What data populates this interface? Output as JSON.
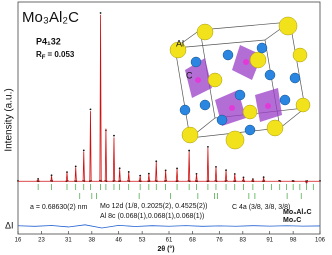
{
  "chart_data": {
    "type": "rietveld",
    "title": "Mo₃Al₂C",
    "space_group": "P4₁32",
    "rf_symbol": "R",
    "rf_sub": "F",
    "rf_value": "= 0.053",
    "ylabel": "Intensity (a.u.)",
    "diff_label": "ΔI",
    "xlabel": "2θ (°)",
    "annotations": [
      "a = 0.68630(2) nm",
      "Mo 12d (1/8, 0.2025(2), 0.4525(2))",
      "C 4a (3/8, 3/8, 3/8)",
      "Al 8c (0.068(1),0.068(1),0.068(1))"
    ],
    "inset_labels": [
      "Al",
      "C"
    ],
    "xlim": [
      16,
      106
    ],
    "xticks": [
      16,
      23,
      31,
      38,
      46,
      53,
      61,
      68,
      76,
      83,
      91,
      98,
      106
    ],
    "ylim": [
      0,
      105
    ],
    "x": [
      16,
      21.8,
      22,
      22.2,
      25.8,
      26,
      26.2,
      30.4,
      30.6,
      30.8,
      33,
      33.2,
      33.4,
      35.4,
      35.6,
      35.8,
      37.4,
      37.6,
      37.8,
      40.4,
      40.6,
      40.8,
      42,
      42.2,
      42.4,
      44.4,
      44.6,
      44.8,
      46.1,
      46.3,
      46.5,
      48.8,
      49,
      49.2,
      52.2,
      52.4,
      52.6,
      54.8,
      55,
      55.2,
      57,
      57.2,
      57.4,
      59.8,
      60,
      60.2,
      63.2,
      63.4,
      63.6,
      66.8,
      67,
      67.2,
      69,
      69.2,
      69.4,
      72.4,
      72.6,
      72.8,
      74.8,
      75,
      75.2,
      77.8,
      78,
      78.2,
      80.4,
      80.6,
      80.8,
      83,
      83.2,
      83.4,
      85.8,
      86,
      86.2,
      89,
      89.2,
      89.4,
      93.8,
      94,
      94.2,
      97.8,
      98,
      98.2,
      101.8,
      102,
      102.2,
      106
    ],
    "calculated": {
      "color": "#d01010",
      "values": [
        5,
        5,
        6,
        5,
        5,
        8,
        5,
        5,
        10,
        5,
        5,
        13,
        5,
        5,
        22,
        5,
        5,
        45,
        5,
        5,
        100,
        5,
        5,
        35,
        5,
        5,
        30,
        5,
        5,
        12,
        5,
        5,
        10,
        5,
        5,
        8,
        5,
        5,
        9,
        5,
        5,
        16,
        5,
        5,
        11,
        5,
        5,
        12,
        5,
        5,
        22,
        5,
        5,
        9,
        5,
        5,
        24,
        5,
        5,
        13,
        5,
        5,
        11,
        5,
        5,
        9,
        5,
        5,
        7,
        5,
        5,
        6,
        5,
        5,
        7,
        5,
        5,
        5,
        5,
        5,
        5,
        5,
        5,
        4,
        5,
        5
      ]
    },
    "observed": {
      "color": "#111111",
      "values": [
        5.2,
        5.1,
        6.3,
        5,
        5.2,
        8.4,
        5.1,
        5,
        10.2,
        5.2,
        5.1,
        13.5,
        5,
        5.2,
        22.6,
        5.1,
        5,
        46,
        5.2,
        5.3,
        101,
        5.1,
        5.2,
        34,
        5,
        5.1,
        31,
        5.2,
        5,
        12.4,
        5.1,
        5.2,
        10.3,
        5,
        5.1,
        8.2,
        5,
        5,
        9.3,
        5.1,
        5.2,
        16.4,
        5,
        5.1,
        11.2,
        5.2,
        5,
        12.3,
        5.1,
        5.2,
        22.5,
        5,
        5.1,
        9.2,
        5,
        5,
        24.6,
        5.1,
        5.2,
        13.2,
        5,
        5.1,
        11.3,
        5.2,
        5,
        9.1,
        5.1,
        5.2,
        7.2,
        5,
        5.1,
        6.2,
        5,
        5,
        7.3,
        5.1,
        5.2,
        5.2,
        5,
        5.1,
        5.1,
        5,
        5,
        4.2,
        5.1,
        5.2
      ]
    },
    "reflections": [
      {
        "name": "Mo₃Al₂C",
        "color": "#3aa33a",
        "positions": [
          22,
          26,
          30.6,
          33.2,
          35.6,
          37.6,
          40.6,
          42.2,
          44.6,
          46.3,
          49,
          52.4,
          55,
          57.2,
          60,
          63.4,
          67,
          69.2,
          72.6,
          75,
          78,
          80.6,
          83.2,
          86,
          89.2,
          91.5,
          94,
          96,
          98,
          100,
          102,
          104
        ]
      },
      {
        "name": "Mo₂C",
        "color": "#3aa33a",
        "positions": [
          34.4,
          38,
          39.4,
          52.1,
          61.5,
          69.6,
          74.6,
          75.5,
          84.8,
          86.6,
          96.2,
          100.4
        ]
      }
    ],
    "difference": {
      "color": "#1f5fd0",
      "ylim": [
        -10,
        10
      ],
      "x": [
        16,
        21,
        26,
        31,
        36,
        41,
        46,
        51,
        56,
        61,
        66,
        71,
        76,
        81,
        86,
        91,
        96,
        101,
        106
      ],
      "values": [
        0.3,
        -0.4,
        0.6,
        -1.2,
        1.5,
        -2.5,
        0.8,
        -0.6,
        0.4,
        -0.3,
        0.5,
        -0.4,
        0.2,
        -0.3,
        0.4,
        -0.2,
        0.3,
        -0.2,
        0.1
      ]
    }
  }
}
